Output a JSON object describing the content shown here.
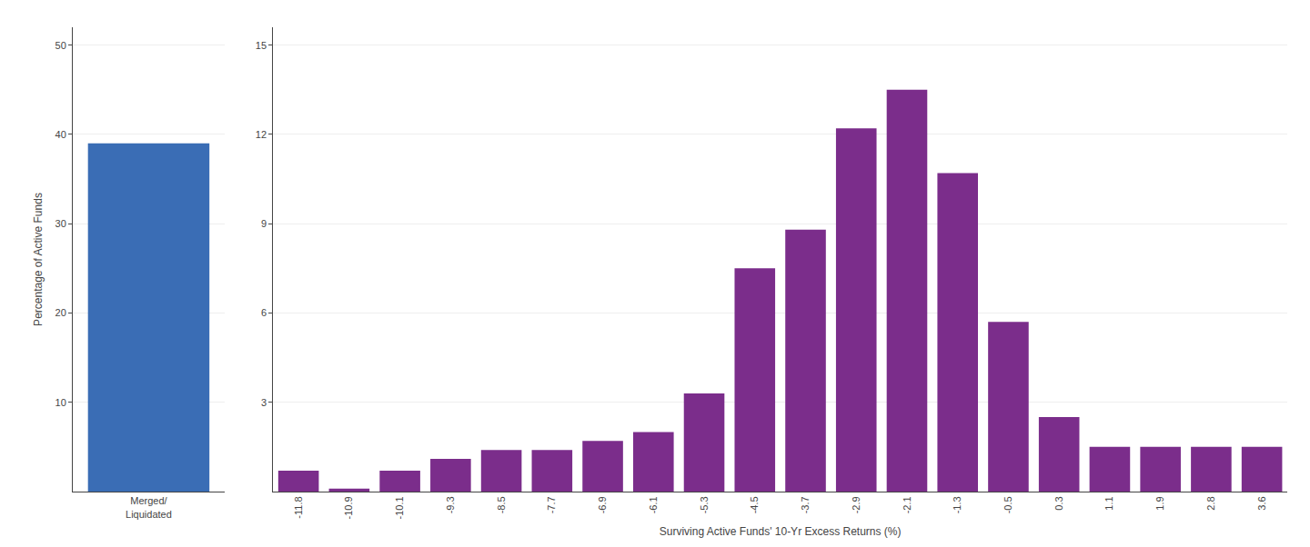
{
  "chart_data": [
    {
      "type": "bar",
      "categories": [
        "Merged/\nLiquidated"
      ],
      "values": [
        39.0
      ],
      "color": "#3A6DB5",
      "ylabel": "Percentage of Active Funds",
      "ylim": [
        0,
        52
      ],
      "yticks": [
        10,
        20,
        30,
        40,
        50
      ],
      "grid": true
    },
    {
      "type": "bar",
      "categories": [
        "-11.8",
        "-10.9",
        "-10.1",
        "-9.3",
        "-8.5",
        "-7.7",
        "-6.9",
        "-6.1",
        "-5.3",
        "-4.5",
        "-3.7",
        "-2.9",
        "-2.1",
        "-1.3",
        "-0.5",
        "0.3",
        "1.1",
        "1.9",
        "2.8",
        "3.6"
      ],
      "values": [
        0.7,
        0.1,
        0.7,
        1.1,
        1.4,
        1.4,
        1.7,
        2.0,
        3.3,
        7.5,
        8.8,
        12.2,
        13.5,
        10.7,
        5.7,
        2.5,
        1.5,
        1.5,
        1.5,
        1.5
      ],
      "color": "#7B2D8B",
      "xlabel": "Surviving Active Funds' 10-Yr Excess Returns (%)",
      "ylim": [
        0,
        15.6
      ],
      "yticks": [
        3,
        6,
        9,
        12,
        15
      ],
      "grid": true
    }
  ]
}
